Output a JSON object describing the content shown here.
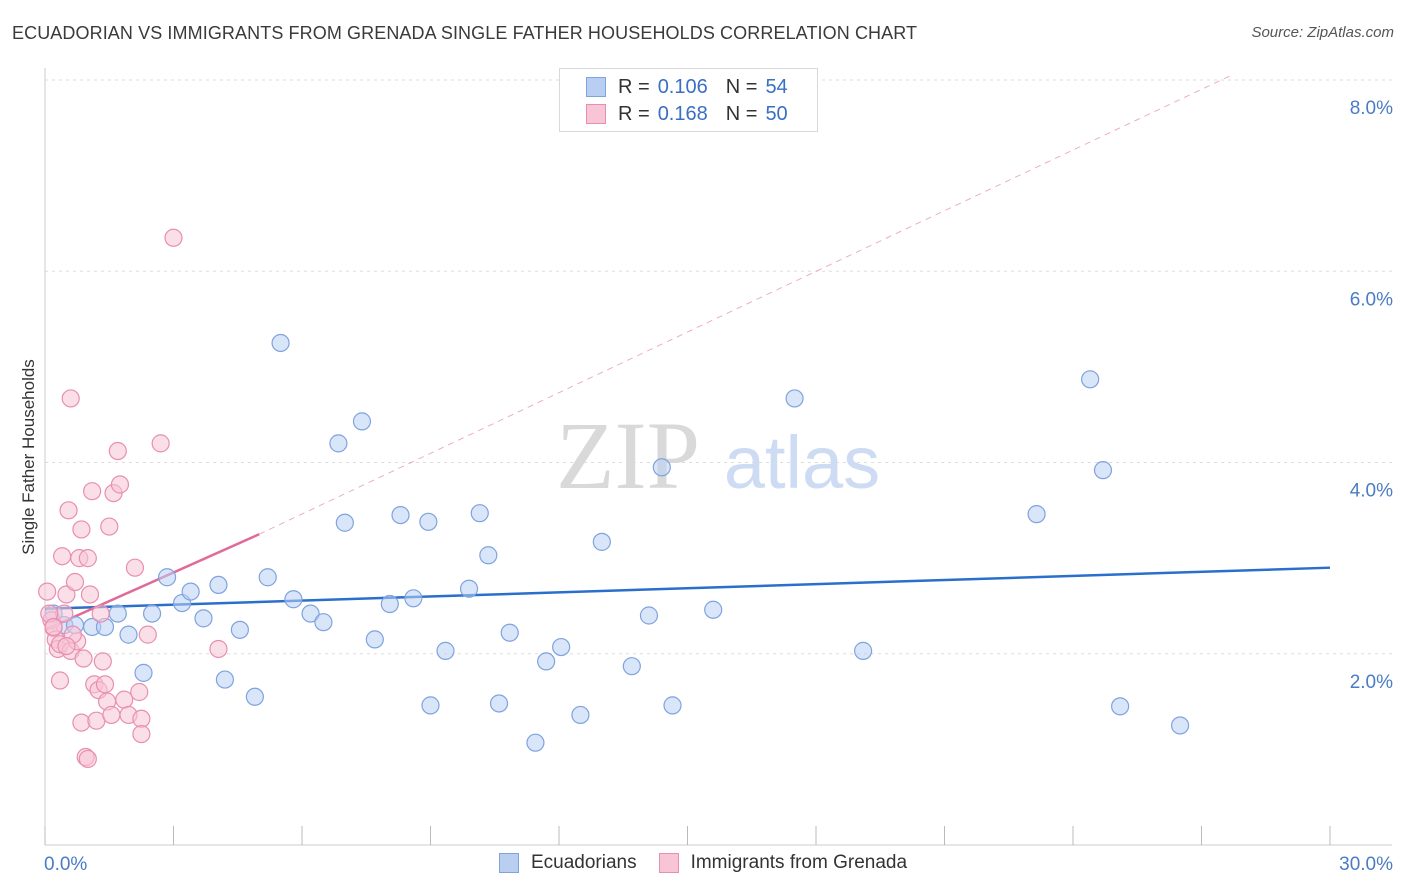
{
  "header": {
    "title": "ECUADORIAN VS IMMIGRANTS FROM GRENADA SINGLE FATHER HOUSEHOLDS CORRELATION CHART",
    "source": "Source: ZipAtlas.com"
  },
  "watermark": {
    "zip": "ZIP",
    "atlas": "atlas"
  },
  "legend": {
    "rows": [
      {
        "r_label": "R =",
        "r_value": "0.106",
        "n_label": "N =",
        "n_value": "54"
      },
      {
        "r_label": "R =",
        "r_value": "0.168",
        "n_label": "N =",
        "n_value": "50"
      }
    ]
  },
  "bottom_legend": {
    "ecuadorians": "Ecuadorians",
    "grenada": "Immigrants from Grenada"
  },
  "colors": {
    "blue_fill": "#b9cff2",
    "blue_stroke": "#7fa3de",
    "blue_line": "#2a6fcc",
    "pink_fill": "#f8c5d6",
    "pink_stroke": "#e88fb0",
    "pink_line": "#e06a98",
    "tick_text": "#4a7cc4",
    "grid": "#dddddd"
  },
  "chart_data": {
    "type": "scatter",
    "title": "ECUADORIAN VS IMMIGRANTS FROM GRENADA SINGLE FATHER HOUSEHOLDS CORRELATION CHART",
    "xlabel": "",
    "ylabel": "Single Father Households",
    "xlim": [
      0,
      30
    ],
    "ylim": [
      0,
      8.2
    ],
    "x_tick_labels": [
      "0.0%",
      "30.0%"
    ],
    "y_ticks": [
      2,
      4,
      6,
      8
    ],
    "y_tick_labels": [
      "2.0%",
      "4.0%",
      "6.0%",
      "8.0%"
    ],
    "legend_position": "top-center",
    "series": [
      {
        "name": "Ecuadorians",
        "r": 0.106,
        "n": 54,
        "trend": {
          "x": [
            0,
            30
          ],
          "y": [
            2.47,
            2.9
          ],
          "style": "solid"
        },
        "points": [
          [
            0.2,
            2.42
          ],
          [
            0.45,
            2.3
          ],
          [
            1.1,
            2.28
          ],
          [
            1.4,
            2.28
          ],
          [
            1.7,
            2.42
          ],
          [
            1.95,
            2.2
          ],
          [
            2.3,
            1.8
          ],
          [
            2.5,
            2.42
          ],
          [
            2.85,
            2.8
          ],
          [
            3.2,
            2.53
          ],
          [
            3.4,
            2.65
          ],
          [
            3.7,
            2.37
          ],
          [
            4.05,
            2.72
          ],
          [
            4.2,
            1.73
          ],
          [
            4.55,
            2.25
          ],
          [
            4.9,
            1.55
          ],
          [
            5.2,
            2.8
          ],
          [
            5.5,
            5.25
          ],
          [
            5.8,
            2.57
          ],
          [
            6.2,
            2.42
          ],
          [
            6.5,
            2.33
          ],
          [
            6.85,
            4.2
          ],
          [
            7.0,
            3.37
          ],
          [
            7.4,
            4.43
          ],
          [
            7.7,
            2.15
          ],
          [
            8.05,
            2.52
          ],
          [
            8.3,
            3.45
          ],
          [
            8.6,
            2.58
          ],
          [
            8.95,
            3.38
          ],
          [
            9.0,
            1.46
          ],
          [
            9.35,
            2.03
          ],
          [
            9.9,
            2.68
          ],
          [
            10.15,
            3.47
          ],
          [
            10.35,
            3.03
          ],
          [
            10.6,
            1.48
          ],
          [
            10.85,
            2.22
          ],
          [
            11.45,
            1.07
          ],
          [
            11.7,
            1.92
          ],
          [
            12.05,
            2.07
          ],
          [
            12.5,
            1.36
          ],
          [
            13.0,
            3.17
          ],
          [
            13.7,
            1.87
          ],
          [
            14.1,
            2.4
          ],
          [
            14.4,
            3.95
          ],
          [
            14.65,
            1.46
          ],
          [
            15.6,
            2.46
          ],
          [
            17.5,
            4.67
          ],
          [
            19.1,
            2.03
          ],
          [
            23.15,
            3.46
          ],
          [
            24.4,
            4.87
          ],
          [
            24.7,
            3.92
          ],
          [
            25.1,
            1.45
          ],
          [
            26.5,
            1.25
          ],
          [
            0.7,
            2.3
          ]
        ]
      },
      {
        "name": "Immigrants from Grenada",
        "r": 0.168,
        "n": 50,
        "trend": {
          "x": [
            0,
            5
          ],
          "y": [
            2.25,
            3.25
          ],
          "style": "solid",
          "extended_x": [
            5,
            27.7
          ],
          "extended_y": [
            3.25,
            8.05
          ],
          "extended_style": "dashed"
        },
        "points": [
          [
            0.05,
            2.65
          ],
          [
            0.15,
            2.35
          ],
          [
            0.2,
            2.27
          ],
          [
            0.25,
            2.15
          ],
          [
            0.3,
            2.05
          ],
          [
            0.35,
            2.1
          ],
          [
            0.35,
            1.72
          ],
          [
            0.4,
            3.02
          ],
          [
            0.45,
            2.42
          ],
          [
            0.5,
            2.62
          ],
          [
            0.55,
            3.5
          ],
          [
            0.6,
            2.03
          ],
          [
            0.6,
            4.67
          ],
          [
            0.7,
            2.75
          ],
          [
            0.75,
            2.13
          ],
          [
            0.8,
            3.0
          ],
          [
            0.85,
            3.3
          ],
          [
            0.85,
            1.28
          ],
          [
            0.9,
            1.95
          ],
          [
            0.95,
            0.92
          ],
          [
            1.0,
            3.0
          ],
          [
            1.05,
            2.62
          ],
          [
            1.1,
            3.7
          ],
          [
            1.15,
            1.68
          ],
          [
            1.2,
            1.3
          ],
          [
            1.25,
            1.62
          ],
          [
            1.3,
            2.42
          ],
          [
            1.35,
            1.92
          ],
          [
            1.4,
            1.68
          ],
          [
            1.45,
            1.5
          ],
          [
            1.5,
            3.33
          ],
          [
            1.55,
            1.36
          ],
          [
            1.6,
            3.68
          ],
          [
            1.7,
            4.12
          ],
          [
            1.75,
            3.77
          ],
          [
            1.85,
            1.52
          ],
          [
            1.95,
            1.36
          ],
          [
            2.1,
            2.9
          ],
          [
            2.2,
            1.6
          ],
          [
            2.25,
            1.32
          ],
          [
            2.25,
            1.16
          ],
          [
            2.4,
            2.2
          ],
          [
            2.7,
            4.2
          ],
          [
            3.0,
            6.35
          ],
          [
            4.05,
            2.05
          ],
          [
            0.1,
            2.42
          ],
          [
            0.2,
            2.28
          ],
          [
            0.65,
            2.2
          ],
          [
            1.0,
            0.9
          ],
          [
            0.5,
            2.08
          ]
        ]
      }
    ]
  }
}
